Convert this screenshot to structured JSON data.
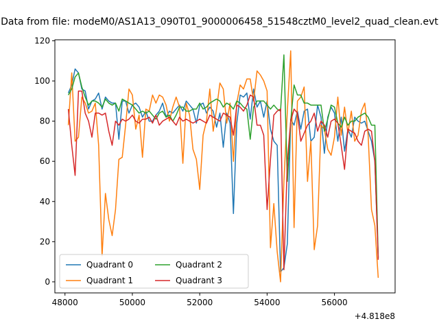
{
  "chart_data": {
    "type": "line",
    "title": "Data from file: modeM0/AS1A13_090T01_9000006458_51548cztM0_level2_quad_clean.evt",
    "xlabel": "",
    "ylabel": "",
    "x_offset_label": "+4.818e8",
    "xlim": [
      47700,
      57800
    ],
    "ylim": [
      -5.5,
      120.5
    ],
    "x_ticks": [
      48000,
      50000,
      52000,
      54000,
      56000
    ],
    "x_tick_labels": [
      "48000",
      "50000",
      "52000",
      "54000",
      "56000"
    ],
    "y_ticks": [
      0,
      20,
      40,
      60,
      80,
      100,
      120
    ],
    "y_tick_labels": [
      "0",
      "20",
      "40",
      "60",
      "80",
      "100",
      "120"
    ],
    "grid": false,
    "legend_position": "lower-left",
    "legend_columns": 2,
    "x": [
      48100,
      48200,
      48300,
      48400,
      48500,
      48600,
      48700,
      48800,
      48900,
      49000,
      49100,
      49200,
      49300,
      49400,
      49500,
      49600,
      49700,
      49800,
      49900,
      50000,
      50100,
      50200,
      50300,
      50400,
      50500,
      50600,
      50700,
      50800,
      50900,
      51000,
      51100,
      51200,
      51300,
      51400,
      51500,
      51600,
      51700,
      51800,
      51900,
      52000,
      52100,
      52200,
      52300,
      52400,
      52500,
      52600,
      52700,
      52800,
      52900,
      53000,
      53100,
      53200,
      53300,
      53400,
      53500,
      53600,
      53700,
      53800,
      53900,
      54000,
      54100,
      54200,
      54300,
      54400,
      54500,
      54600,
      54700,
      54800,
      54900,
      55000,
      55100,
      55200,
      55300,
      55400,
      55500,
      55600,
      55700,
      55800,
      55900,
      56000,
      56100,
      56200,
      56300,
      56400,
      56500,
      56600,
      56700,
      56800,
      56900,
      57000,
      57100,
      57200,
      57300
    ],
    "series": [
      {
        "name": "Quadrant 0",
        "color": "#1f77b4",
        "values": [
          94,
          98,
          106,
          104,
          96,
          95,
          86,
          90,
          91,
          94,
          86,
          92,
          90,
          89,
          89,
          71,
          90,
          90,
          84,
          88,
          89,
          87,
          82,
          85,
          80,
          80,
          83,
          85,
          89,
          82,
          85,
          84,
          86,
          88,
          85,
          90,
          88,
          86,
          79,
          88,
          89,
          84,
          87,
          85,
          77,
          84,
          67,
          84,
          79,
          34,
          79,
          93,
          92,
          94,
          81,
          96,
          87,
          90,
          82,
          90,
          76,
          70,
          68,
          5,
          7,
          19,
          81,
          78,
          85,
          76,
          85,
          86,
          70,
          72,
          88,
          82,
          64,
          82,
          87,
          84,
          70,
          82,
          65,
          76,
          72,
          82,
          80,
          79,
          80,
          75,
          70,
          60,
          12
        ]
      },
      {
        "name": "Quadrant 1",
        "color": "#ff7f0e",
        "values": [
          78,
          104,
          70,
          72,
          92,
          89,
          84,
          85,
          89,
          68,
          13,
          44,
          31,
          23,
          36,
          61,
          62,
          78,
          96,
          93,
          76,
          83,
          62,
          86,
          85,
          93,
          89,
          93,
          92,
          88,
          80,
          87,
          92,
          87,
          59,
          89,
          83,
          66,
          61,
          46,
          73,
          80,
          96,
          75,
          86,
          99,
          96,
          79,
          89,
          60,
          89,
          98,
          96,
          101,
          101,
          90,
          105,
          103,
          100,
          95,
          17,
          39,
          15,
          0,
          50,
          85,
          115,
          27,
          90,
          92,
          97,
          50,
          70,
          16,
          28,
          78,
          76,
          66,
          63,
          72,
          92,
          73,
          87,
          74,
          85,
          70,
          73,
          85,
          89,
          73,
          36,
          28,
          2
        ]
      },
      {
        "name": "Quadrant 2",
        "color": "#2ca02c",
        "values": [
          93,
          96,
          102,
          104,
          97,
          92,
          88,
          90,
          90,
          89,
          87,
          91,
          89,
          88,
          89,
          85,
          91,
          90,
          89,
          88,
          86,
          84,
          85,
          84,
          85,
          83,
          81,
          84,
          85,
          82,
          83,
          80,
          83,
          87,
          87,
          85,
          85,
          86,
          86,
          89,
          86,
          87,
          89,
          90,
          91,
          90,
          87,
          89,
          88,
          86,
          90,
          89,
          87,
          86,
          71,
          87,
          90,
          90,
          90,
          88,
          86,
          88,
          86,
          85,
          113,
          50,
          80,
          98,
          93,
          93,
          89,
          89,
          88,
          88,
          88,
          88,
          75,
          81,
          88,
          87,
          79,
          77,
          82,
          78,
          80,
          80,
          82,
          83,
          84,
          82,
          78,
          78,
          12
        ]
      },
      {
        "name": "Quadrant 3",
        "color": "#d62728",
        "values": [
          86,
          68,
          53,
          95,
          95,
          84,
          80,
          72,
          84,
          84,
          83,
          84,
          75,
          68,
          80,
          78,
          81,
          80,
          81,
          83,
          80,
          79,
          81,
          81,
          82,
          79,
          83,
          78,
          80,
          81,
          82,
          80,
          78,
          82,
          80,
          81,
          80,
          79,
          80,
          81,
          80,
          79,
          83,
          82,
          81,
          80,
          84,
          83,
          82,
          73,
          88,
          87,
          85,
          88,
          93,
          92,
          78,
          78,
          73,
          36,
          61,
          83,
          85,
          86,
          6,
          60,
          80,
          86,
          84,
          70,
          74,
          78,
          80,
          84,
          75,
          80,
          78,
          72,
          80,
          81,
          79,
          68,
          56,
          76,
          75,
          74,
          70,
          68,
          75,
          76,
          75,
          60,
          11
        ]
      }
    ]
  }
}
